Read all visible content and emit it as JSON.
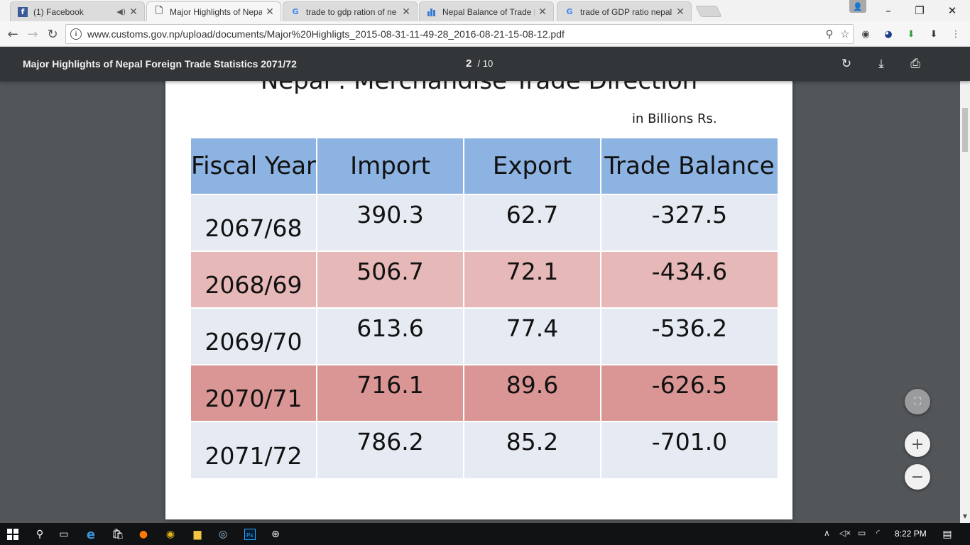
{
  "browser": {
    "tabs": [
      {
        "title": "(1) Facebook",
        "icon": "facebook-icon",
        "audio": true
      },
      {
        "title": "Major Highlights of Nepa",
        "icon": "document-icon",
        "active": true
      },
      {
        "title": "trade to gdp ration of ne",
        "icon": "google-icon"
      },
      {
        "title": "Nepal Balance of Trade |",
        "icon": "bar-chart-icon"
      },
      {
        "title": "trade of GDP ratio nepal",
        "icon": "google-icon"
      }
    ],
    "url": "www.customs.gov.np/upload/documents/Major%20Highligts_2015-08-31-11-49-28_2016-08-21-15-08-12.pdf"
  },
  "pdf_viewer": {
    "title": "Major Highlights of Nepal Foreign Trade Statistics 2071/72",
    "current_page": "2",
    "total_pages": "/ 10"
  },
  "document": {
    "heading": "Nepal : Merchandise Trade Direction",
    "unit_note": "in Billions Rs.",
    "columns": [
      "Fiscal Year",
      "Import",
      "Export",
      "Trade Balance"
    ],
    "rows": [
      {
        "year": "2067/68",
        "import": "390.3",
        "export": "62.7",
        "balance": "-327.5"
      },
      {
        "year": "2068/69",
        "import": "506.7",
        "export": "72.1",
        "balance": "-434.6"
      },
      {
        "year": "2069/70",
        "import": "613.6",
        "export": "77.4",
        "balance": "-536.2"
      },
      {
        "year": "2070/71",
        "import": "716.1",
        "export": "89.6",
        "balance": "-626.5"
      },
      {
        "year": "2071/72",
        "import": "786.2",
        "export": "85.2",
        "balance": "-701.0"
      }
    ]
  },
  "taskbar": {
    "clock": "8:22 PM"
  },
  "colors": {
    "header_blue": "#8db3e2",
    "row_light": "#e6eaf2",
    "row_pink": "#e6b8b7",
    "row_red": "#da9694",
    "pdf_toolbar": "#323639"
  }
}
